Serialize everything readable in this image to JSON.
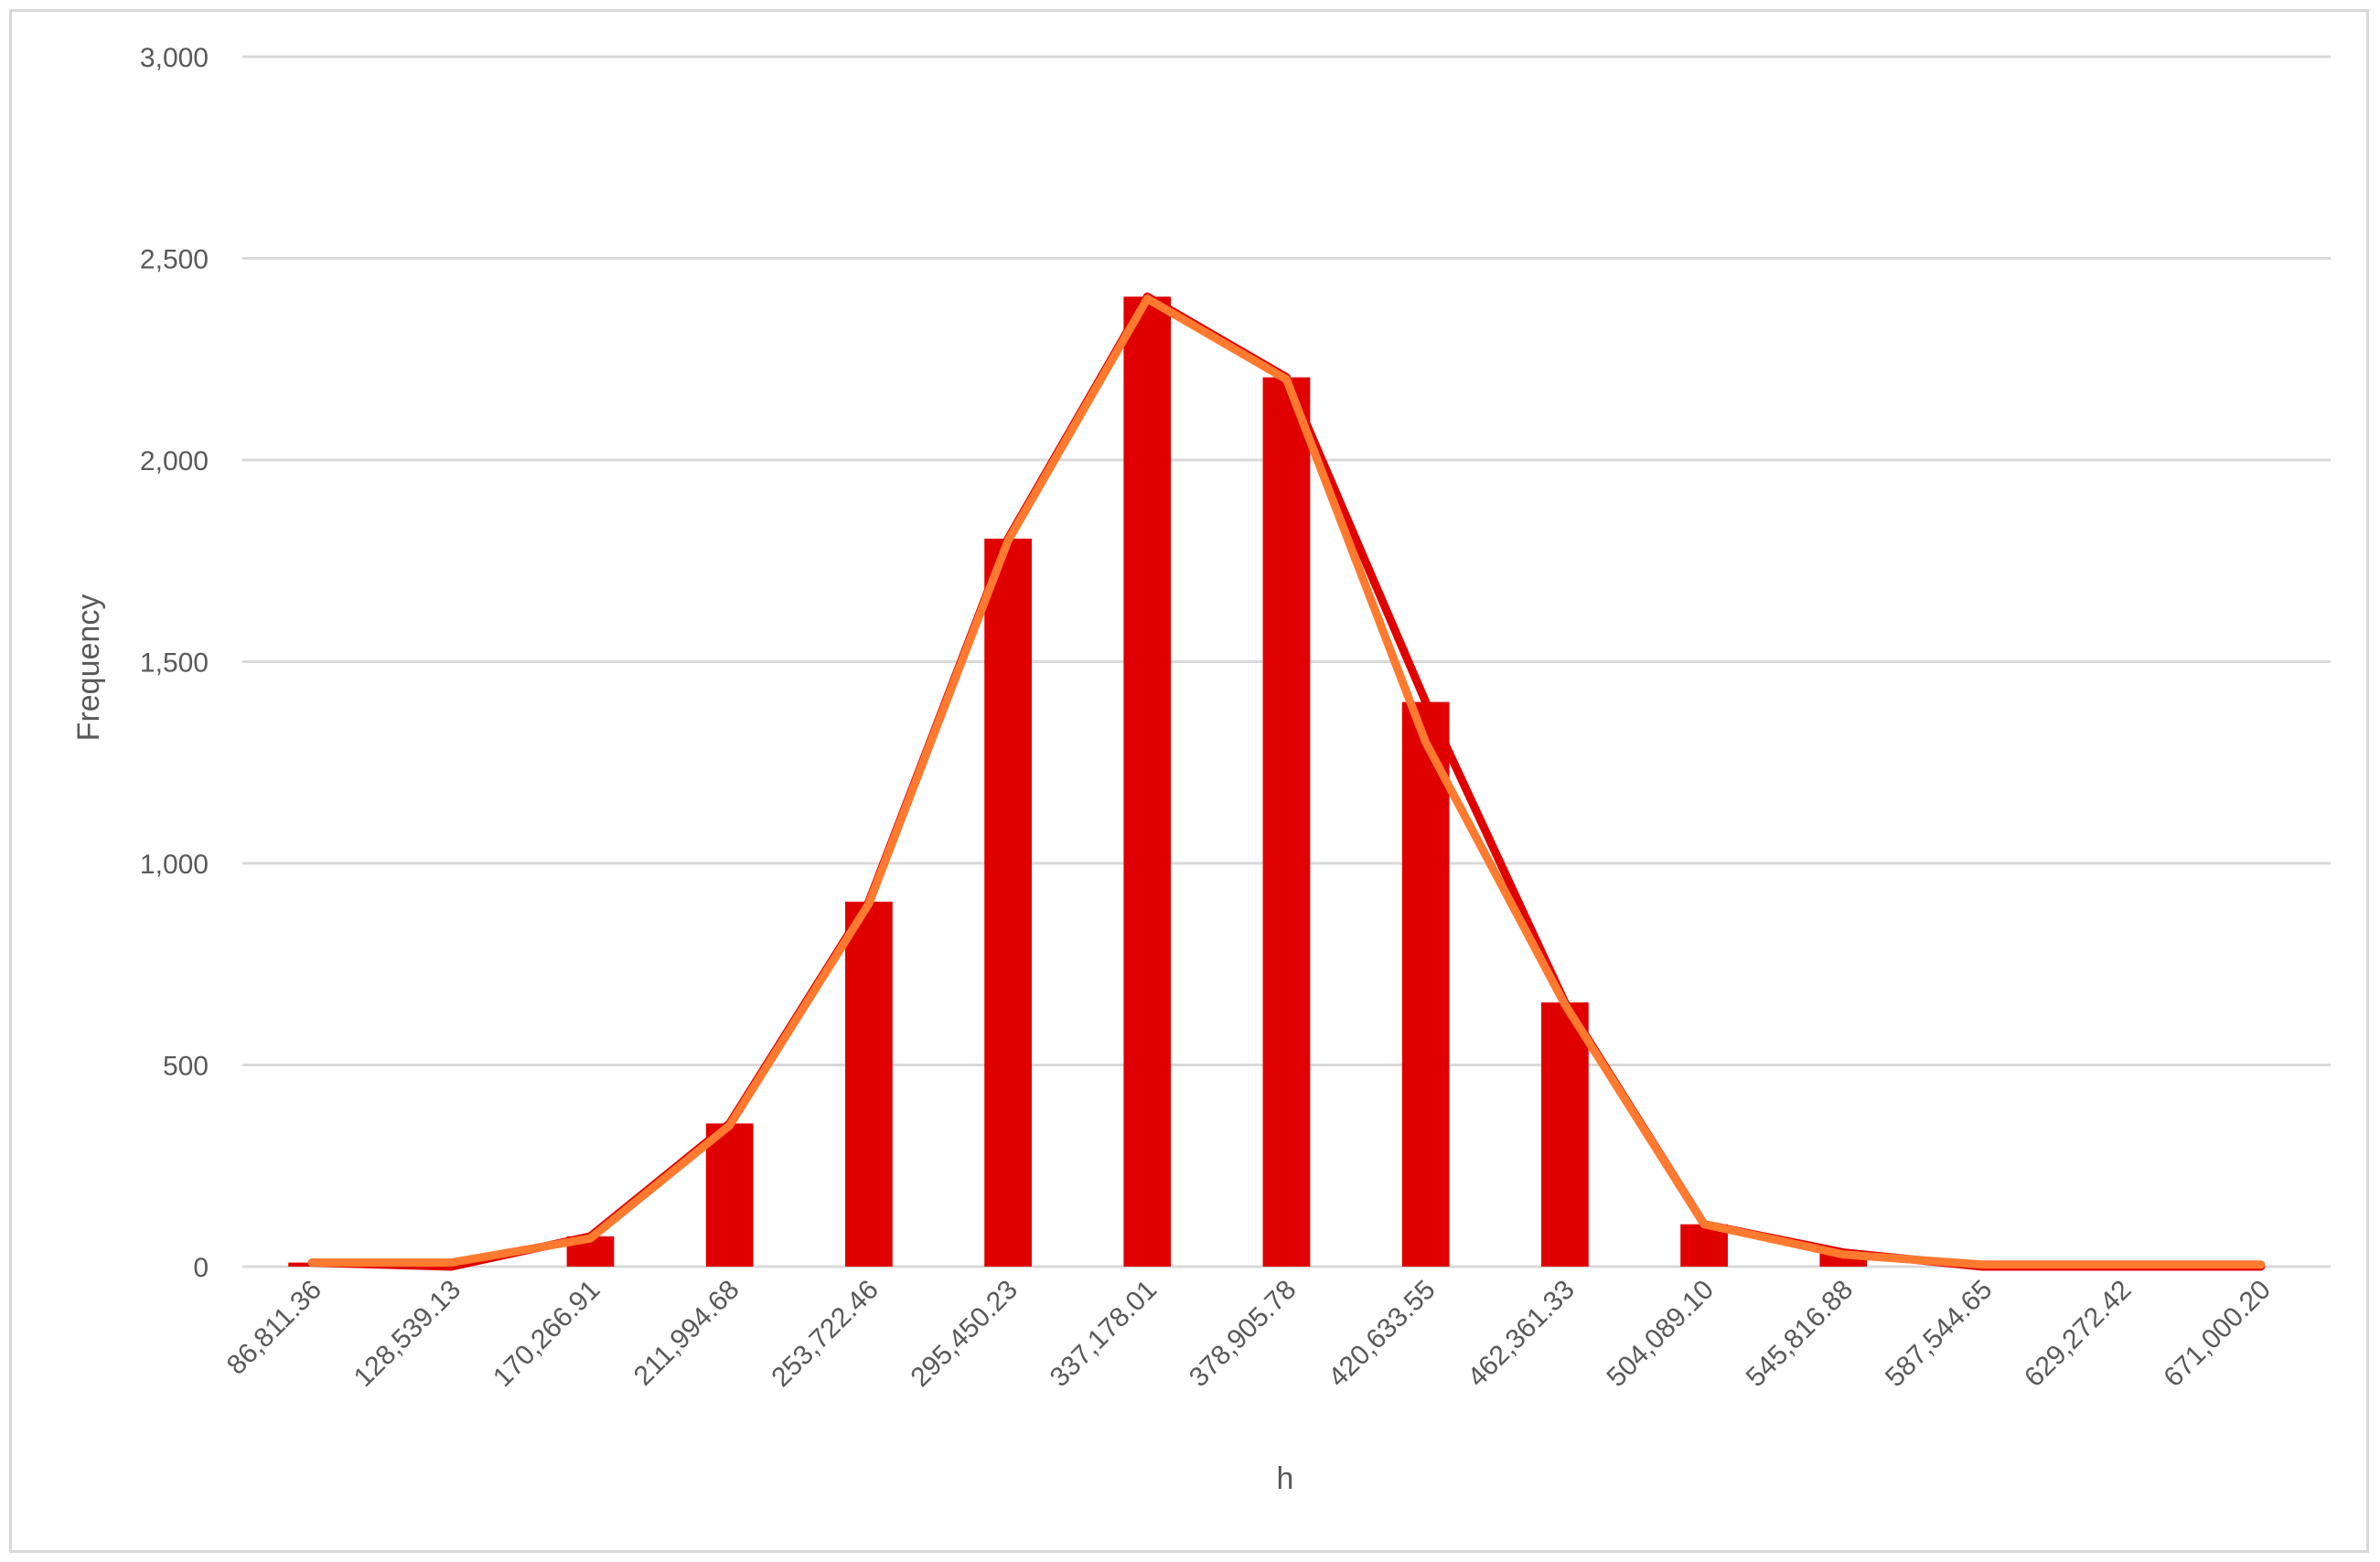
{
  "chart_data": {
    "type": "bar",
    "xlabel": "h",
    "ylabel": "Frequency",
    "ylim": [
      0,
      3000
    ],
    "yticks": [
      0,
      500,
      1000,
      1500,
      2000,
      2500,
      3000
    ],
    "ytick_labels": [
      "0",
      "500",
      "1,000",
      "1,500",
      "2,000",
      "2,500",
      "3,000"
    ],
    "grid": true,
    "categories": [
      "86,811.36",
      "128,539.13",
      "170,266.91",
      "211,994.68",
      "253,722.46",
      "295,450.23",
      "337,178.01",
      "378,905.78",
      "420,633.55",
      "462,361.33",
      "504,089.10",
      "545,816.88",
      "587,544.65",
      "629,272.42",
      "671,000.20"
    ],
    "series": [
      {
        "kind": "bar",
        "color": "#e00000",
        "values": [
          10,
          0,
          75,
          355,
          905,
          1805,
          2405,
          2205,
          1400,
          655,
          105,
          35,
          0,
          0,
          0
        ]
      },
      {
        "kind": "line",
        "color": "#e00000",
        "values": [
          10,
          0,
          75,
          355,
          905,
          1805,
          2405,
          2205,
          1400,
          655,
          105,
          35,
          0,
          0,
          0
        ]
      },
      {
        "kind": "line",
        "color": "#ff7a2f",
        "values": [
          10,
          10,
          70,
          350,
          900,
          1800,
          2400,
          2200,
          1300,
          650,
          105,
          30,
          5,
          5,
          5
        ]
      }
    ]
  }
}
